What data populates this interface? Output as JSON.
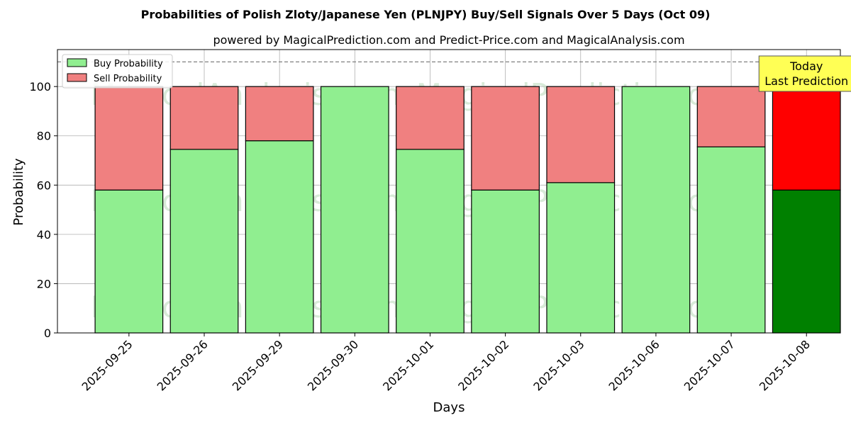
{
  "chart_data": {
    "type": "bar",
    "stacked": true,
    "title": "Probabilities of Polish Zloty/Japanese Yen (PLNJPY) Buy/Sell Signals Over 5 Days (Oct 09)",
    "subtitle": "powered by MagicalPrediction.com and Predict-Price.com and MagicalAnalysis.com",
    "xlabel": "Days",
    "ylabel": "Probability",
    "ylim": [
      0,
      115
    ],
    "yticks": [
      0,
      20,
      40,
      60,
      80,
      100
    ],
    "grid": true,
    "legend_position": "top-left",
    "reference_line": 110,
    "categories": [
      "2025-09-25",
      "2025-09-26",
      "2025-09-29",
      "2025-09-30",
      "2025-10-01",
      "2025-10-02",
      "2025-10-03",
      "2025-10-06",
      "2025-10-07",
      "2025-10-08"
    ],
    "series": [
      {
        "name": "Buy Probability",
        "color": "#90ee90",
        "values": [
          58,
          74.5,
          78,
          100,
          74.5,
          58,
          61,
          100,
          75.5,
          58
        ]
      },
      {
        "name": "Sell Probability",
        "color": "#f08080",
        "values": [
          42,
          25.5,
          22,
          0,
          25.5,
          42,
          39,
          0,
          24.5,
          42
        ]
      }
    ],
    "highlight": {
      "index": 9,
      "buy_color": "#008000",
      "sell_color": "#ff0000"
    },
    "annotation": {
      "lines": [
        "Today",
        "Last Prediction"
      ],
      "background": "#ffff55"
    },
    "watermarks": [
      "MagicalAnalysis.com",
      "MagicalPrediction.com"
    ]
  }
}
